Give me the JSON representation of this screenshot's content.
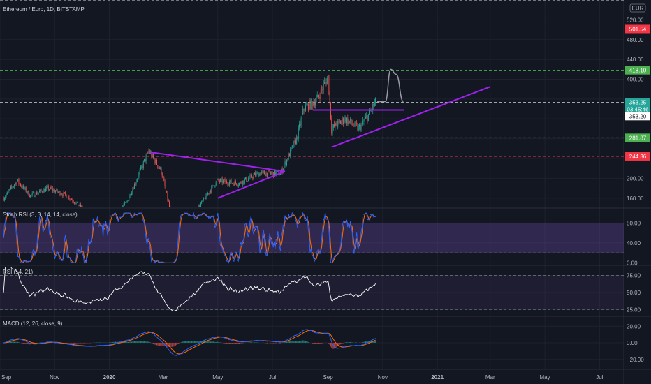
{
  "title": "Ethereum / Euro, 1D, BITSTAMP",
  "currency_label": "EUR",
  "colors": {
    "background": "#131722",
    "axis_text": "#b2b5be",
    "grid": "#1e222d",
    "candle_up": "#26a69a",
    "candle_down": "#ef5350",
    "trendline": "#a020f0",
    "stoch_k": "#2962ff",
    "stoch_d": "#ff6d00",
    "stoch_band": "#7e57c2",
    "rsi_line": "#ffffff",
    "macd_line": "#2962ff",
    "signal_line": "#ff6d00",
    "dash_white": "#d1d4dc",
    "dash_red": "#f23645",
    "dash_green": "#4caf50"
  },
  "time_axis": {
    "labels": [
      "Sep",
      "Nov",
      "2020",
      "Mar",
      "May",
      "Jul",
      "Sep",
      "Nov",
      "2021",
      "Mar",
      "May",
      "Jul"
    ]
  },
  "chart_data": [
    {
      "type": "candlestick",
      "pane": "price",
      "title": "Ethereum / Euro, 1D, BITSTAMP",
      "x_start": "2019-09-01",
      "x_end": "2021-07-28",
      "ylim": [
        140,
        560
      ],
      "y_ticks": [
        160,
        200,
        240,
        280,
        320,
        360,
        400,
        440,
        480,
        520
      ],
      "y_tick_labels": [
        "160.00",
        "200.00",
        "",
        "",
        "",
        "",
        "400.00",
        "440.00",
        "480.00",
        "520.00"
      ],
      "monthly_path": [
        {
          "date": "2019-09-05",
          "price": 160
        },
        {
          "date": "2019-09-20",
          "price": 195
        },
        {
          "date": "2019-10-05",
          "price": 165
        },
        {
          "date": "2019-10-25",
          "price": 180
        },
        {
          "date": "2019-11-15",
          "price": 165
        },
        {
          "date": "2019-12-05",
          "price": 135
        },
        {
          "date": "2019-12-30",
          "price": 120
        },
        {
          "date": "2020-01-20",
          "price": 150
        },
        {
          "date": "2020-02-14",
          "price": 255
        },
        {
          "date": "2020-02-28",
          "price": 215
        },
        {
          "date": "2020-03-12",
          "price": 110
        },
        {
          "date": "2020-04-05",
          "price": 130
        },
        {
          "date": "2020-04-30",
          "price": 195
        },
        {
          "date": "2020-05-25",
          "price": 190
        },
        {
          "date": "2020-06-15",
          "price": 210
        },
        {
          "date": "2020-07-10",
          "price": 210
        },
        {
          "date": "2020-07-28",
          "price": 280
        },
        {
          "date": "2020-08-05",
          "price": 340
        },
        {
          "date": "2020-08-20",
          "price": 360
        },
        {
          "date": "2020-09-01",
          "price": 405
        },
        {
          "date": "2020-09-05",
          "price": 300
        },
        {
          "date": "2020-09-20",
          "price": 320
        },
        {
          "date": "2020-10-05",
          "price": 300
        },
        {
          "date": "2020-10-15",
          "price": 325
        },
        {
          "date": "2020-10-24",
          "price": 353
        }
      ],
      "annotations": {
        "symmetrical_triangle": {
          "upper": [
            {
              "date": "2020-02-15",
              "price": 253
            },
            {
              "date": "2020-07-15",
              "price": 214
            }
          ],
          "lower": [
            {
              "date": "2020-05-01",
              "price": 160
            },
            {
              "date": "2020-07-15",
              "price": 214
            }
          ]
        },
        "ascending_triangle": {
          "top": [
            {
              "date": "2020-08-15",
              "price": 338
            },
            {
              "date": "2020-11-25",
              "price": 338
            }
          ],
          "rising": [
            {
              "date": "2020-09-05",
              "price": 263
            },
            {
              "date": "2021-03-01",
              "price": 385
            }
          ]
        },
        "hand_drawn_projection": [
          {
            "date": "2020-10-26",
            "price": 355
          },
          {
            "date": "2020-11-04",
            "price": 355
          },
          {
            "date": "2020-11-10",
            "price": 420
          },
          {
            "date": "2020-11-16",
            "price": 410
          },
          {
            "date": "2020-11-24",
            "price": 355
          }
        ]
      },
      "horizontal_levels": [
        {
          "price": 560,
          "label": "",
          "style": "white-dashed"
        },
        {
          "price": 501.54,
          "label": "501.54",
          "style": "red-dashed",
          "tag_bg": "#f23645",
          "tag_fg": "#ffffff"
        },
        {
          "price": 418.1,
          "label": "418.10",
          "style": "green-dashed",
          "tag_bg": "#4caf50",
          "tag_fg": "#ffffff"
        },
        {
          "price": 353.25,
          "label": "353.25",
          "style": "white-dashed",
          "tag_bg": "#26a69a",
          "tag_fg": "#ffffff"
        },
        {
          "price": 281.87,
          "label": "281.87",
          "style": "green-dashed",
          "tag_bg": "#4caf50",
          "tag_fg": "#ffffff"
        },
        {
          "price": 244.36,
          "label": "244.36",
          "style": "red-dashed",
          "tag_bg": "#f23645",
          "tag_fg": "#ffffff"
        }
      ],
      "price_tags": [
        {
          "price": 339.5,
          "label": "03:45:46",
          "bg": "#26a69a",
          "fg": "#ffffff"
        },
        {
          "price": 325.6,
          "label": "353.20",
          "bg": "#ffffff",
          "fg": "#131722"
        }
      ]
    },
    {
      "type": "line",
      "pane": "stoch_rsi",
      "title": "Stoch RSI (3, 3, 14, 14, close)",
      "ylim": [
        -5,
        110
      ],
      "y_ticks": [
        0,
        40,
        80
      ],
      "y_tick_labels": [
        "0.00",
        "40.00",
        "80.00"
      ],
      "band": [
        20,
        80
      ],
      "series": [
        {
          "key": "k"
        },
        {
          "key": "d"
        }
      ]
    },
    {
      "type": "line",
      "pane": "rsi",
      "title": "RSI (14, 21)",
      "ylim": [
        15,
        90
      ],
      "y_ticks": [
        25,
        50,
        75
      ],
      "y_tick_labels": [
        "25.00",
        "50.00",
        "75.00"
      ],
      "band": [
        25,
        75
      ],
      "series": [
        {
          "key": "rsi"
        }
      ]
    },
    {
      "type": "line",
      "pane": "macd",
      "title": "MACD (12, 26, close, 9)",
      "ylim": [
        -32,
        32
      ],
      "y_ticks": [
        -20,
        0,
        20
      ],
      "y_tick_labels": [
        "−20.00",
        "0.00",
        "20.00"
      ],
      "series": [
        {
          "key": "macd"
        },
        {
          "key": "signal"
        },
        {
          "key": "histogram"
        }
      ]
    }
  ]
}
